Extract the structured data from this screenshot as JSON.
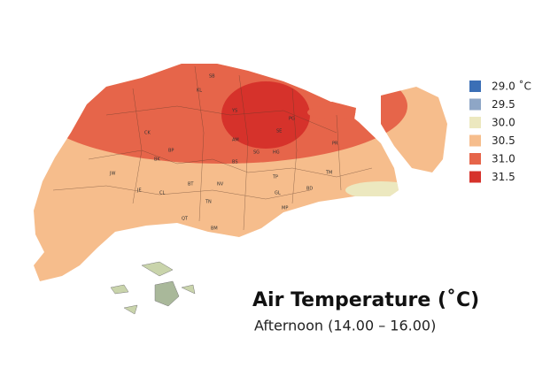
{
  "title": "Air Temperature (˚C)",
  "subtitle": "Afternoon (14.00 – 16.00)",
  "legend": [
    {
      "label": "29.0 ˚C",
      "color": "#3b6fb6"
    },
    {
      "label": "29.5",
      "color": "#8ea6c6"
    },
    {
      "label": "30.0",
      "color": "#ece8bf"
    },
    {
      "label": "30.5",
      "color": "#f6bd8c"
    },
    {
      "label": "31.0",
      "color": "#e6654a"
    },
    {
      "label": "31.5",
      "color": "#d6322b"
    }
  ],
  "districts": [
    "SB",
    "YS",
    "PG",
    "SE",
    "HG",
    "PR",
    "AM",
    "SG",
    "BS",
    "TM",
    "TP",
    "GL",
    "BD",
    "MP",
    "KL",
    "NV",
    "BT",
    "CL",
    "JE",
    "JW",
    "BK",
    "BP",
    "CK",
    "QT",
    "TN",
    "BM"
  ]
}
